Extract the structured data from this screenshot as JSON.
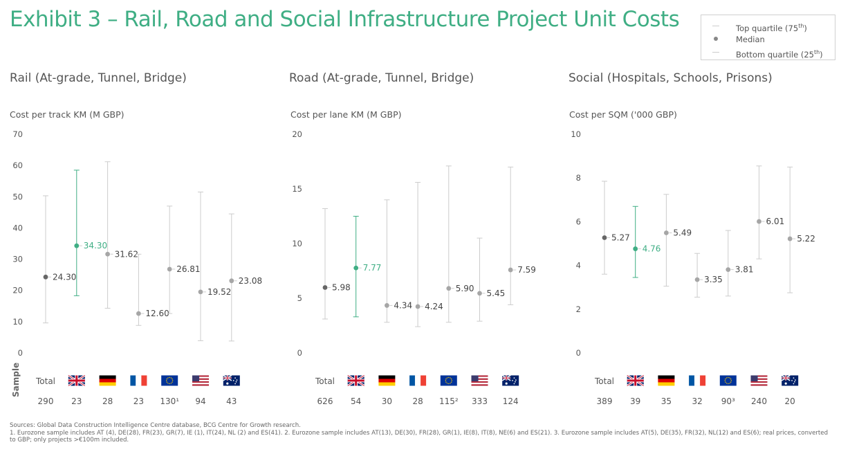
{
  "title": "Exhibit 3 – Rail, Road and Social Infrastructure Project Unit Costs",
  "legend": {
    "top_label": "Top quartile (75",
    "top_sup": "th",
    "top_close": ")",
    "median_label": "Median",
    "bottom_label": "Bottom quartile (25",
    "bottom_sup": "th",
    "bottom_close": ")"
  },
  "sample_label": "Sample",
  "colors": {
    "highlight": "#3fae84",
    "total": "#666666",
    "default": "#a6a6a6",
    "whisker": "#cccccc"
  },
  "chart_data": [
    {
      "type": "scatter",
      "title": "Rail (At-grade, Tunnel, Bridge)",
      "ylabel": "Cost per track KM (M GBP)",
      "ylim": [
        0,
        70
      ],
      "yticks": [
        "0",
        "10",
        "20",
        "30",
        "40",
        "50",
        "60",
        "70"
      ],
      "categories": [
        "Total",
        "UK",
        "Germany",
        "France",
        "Eurozone",
        "USA",
        "Australia"
      ],
      "samples": [
        "290",
        "23",
        "28",
        "23",
        "130¹",
        "94",
        "43"
      ],
      "median": [
        24.3,
        34.3,
        31.62,
        12.6,
        26.81,
        19.52,
        23.08
      ],
      "median_labels": [
        "24.30",
        "34.30",
        "31.62",
        "12.60",
        "26.81",
        "19.52",
        "23.08"
      ],
      "top_quartile": [
        50.3,
        58.5,
        61.2,
        31.6,
        47.0,
        51.5,
        44.5
      ],
      "bottom_quartile": [
        9.6,
        18.3,
        14.3,
        8.8,
        12.6,
        3.9,
        3.8
      ]
    },
    {
      "type": "scatter",
      "title": "Road (At-grade, Tunnel, Bridge)",
      "ylabel": "Cost per lane KM (M GBP)",
      "ylim": [
        0,
        20
      ],
      "yticks": [
        "0",
        "5",
        "10",
        "15",
        "20"
      ],
      "categories": [
        "Total",
        "UK",
        "Germany",
        "France",
        "Eurozone",
        "USA",
        "Australia"
      ],
      "samples": [
        "626",
        "54",
        "30",
        "28",
        "115²",
        "333",
        "124"
      ],
      "median": [
        5.98,
        7.77,
        4.34,
        4.24,
        5.9,
        5.45,
        7.59
      ],
      "median_labels": [
        "5.98",
        "7.77",
        "4.34",
        "4.24",
        "5.90",
        "5.45",
        "7.59"
      ],
      "top_quartile": [
        13.2,
        12.5,
        14.0,
        15.6,
        17.1,
        10.5,
        17.0
      ],
      "bottom_quartile": [
        3.1,
        3.3,
        2.8,
        2.4,
        2.8,
        2.9,
        4.4
      ]
    },
    {
      "type": "scatter",
      "title": "Social (Hospitals, Schools, Prisons)",
      "ylabel": "Cost per SQM ('000 GBP)",
      "ylim": [
        0,
        10
      ],
      "yticks": [
        "0",
        "2",
        "4",
        "6",
        "8",
        "10"
      ],
      "categories": [
        "Total",
        "UK",
        "Germany",
        "France",
        "Eurozone",
        "USA",
        "Australia"
      ],
      "samples": [
        "389",
        "39",
        "35",
        "32",
        "90³",
        "240",
        "20"
      ],
      "median": [
        5.27,
        4.76,
        5.49,
        3.35,
        3.81,
        6.01,
        5.22
      ],
      "median_labels": [
        "5.27",
        "4.76",
        "5.49",
        "3.35",
        "3.81",
        "6.01",
        "5.22"
      ],
      "top_quartile": [
        7.85,
        6.7,
        7.25,
        4.55,
        5.6,
        8.55,
        8.5
      ],
      "bottom_quartile": [
        3.6,
        3.45,
        3.05,
        2.55,
        2.6,
        4.3,
        2.75
      ]
    }
  ],
  "footnote": {
    "sources": "Sources: Global Data Construction Intelligence Centre database, BCG Centre for Growth research.",
    "notes": "1. Eurozone sample includes AT (4), DE(28), FR(23), GR(7), IE (1), IT(24), NL (2) and ES(41). 2. Eurozone sample includes AT(13), DE(30), FR(28), GR(1), IE(8), IT(8), NE(6) and ES(21). 3. Eurozone sample includes AT(5), DE(35), FR(32), NL(12) and ES(6); real prices, converted to GBP; only projects >€100m included."
  }
}
